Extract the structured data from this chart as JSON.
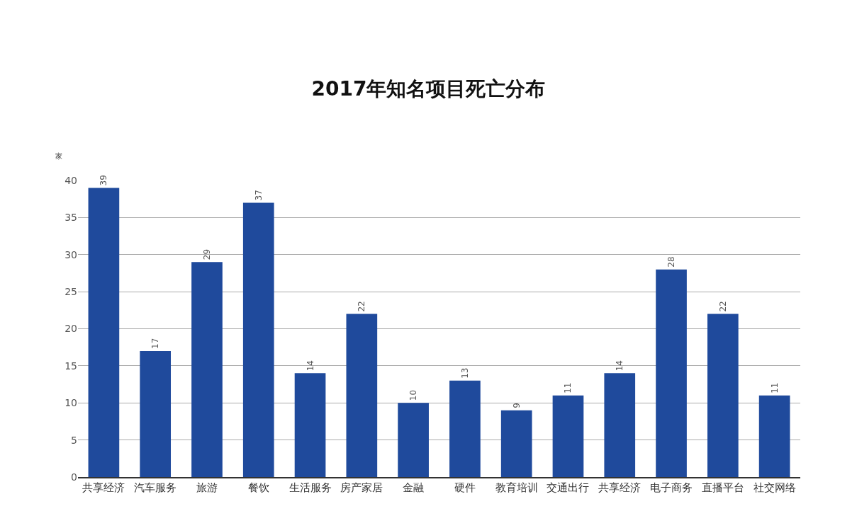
{
  "chart_data": {
    "type": "bar",
    "title": "2017年知名项目死亡分布",
    "ylabel": "家",
    "categories": [
      "共享经济",
      "汽车服务",
      "旅游",
      "餐饮",
      "生活服务",
      "房产家居",
      "金融",
      "硬件",
      "教育培训",
      "交通出行",
      "共享经济",
      "电子商务",
      "直播平台",
      "社交网络"
    ],
    "values": [
      39,
      17,
      29,
      37,
      14,
      22,
      10,
      13,
      9,
      11,
      14,
      28,
      22,
      11
    ],
    "color": "#1f4a9c",
    "ylim": [
      0,
      40
    ],
    "yticks": [
      0,
      5,
      10,
      15,
      20,
      25,
      30,
      35,
      40
    ],
    "grid": "y",
    "data_labels": true
  }
}
